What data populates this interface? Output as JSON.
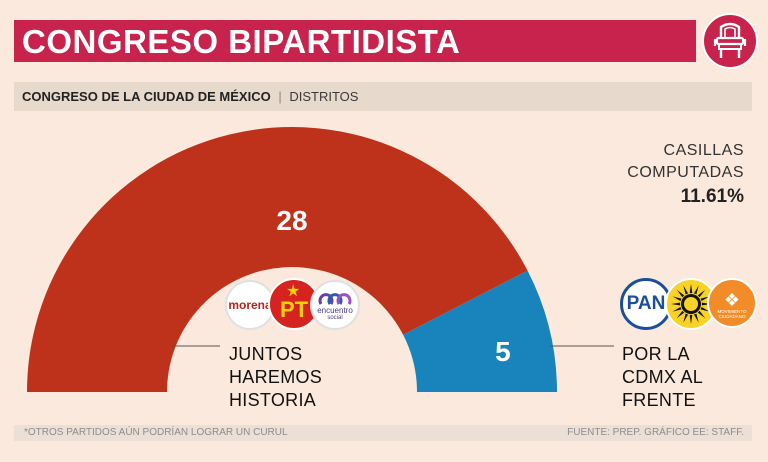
{
  "header": {
    "title": "CONGRESO BIPARTIDISTA",
    "icon": "throne-chair-icon",
    "accent_color": "#c8234d"
  },
  "subheader": {
    "bold": "CONGRESO DE LA CIUDAD DE MÉXICO",
    "separator": "|",
    "light": "DISTRITOS"
  },
  "casillas": {
    "label_line1": "CASILLAS",
    "label_line2": "COMPUTADAS",
    "value": "11.61%"
  },
  "chart_data": {
    "type": "pie",
    "subtype": "half-donut",
    "series": [
      {
        "name": "JUNTOS HAREMOS HISTORIA",
        "label_lines": [
          "JUNTOS",
          "HAREMOS",
          "HISTORIA"
        ],
        "value": 28,
        "color": "#be311b",
        "parties": [
          "morena",
          "PT",
          "encuentro social"
        ]
      },
      {
        "name": "POR LA CDMX AL FRENTE",
        "label_lines": [
          "POR LA",
          "CDMX AL",
          "FRENTE"
        ],
        "value": 5,
        "color": "#1983bb",
        "parties": [
          "PAN",
          "PRD",
          "MOVIMIENTO CIUDADANO"
        ]
      }
    ]
  },
  "logos": {
    "morena": "morena",
    "pt": "PT",
    "pes": "encuentro",
    "pes_sub": "social",
    "pan": "PAN",
    "mc": "MOVIMIENTO CIUDADANO"
  },
  "footer": {
    "left": "*OTROS PARTIDOS AÚN PODRÍAN LOGRAR UN CURUL",
    "right": "FUENTE: PREP.  GRÁFICO EE: STAFF."
  }
}
